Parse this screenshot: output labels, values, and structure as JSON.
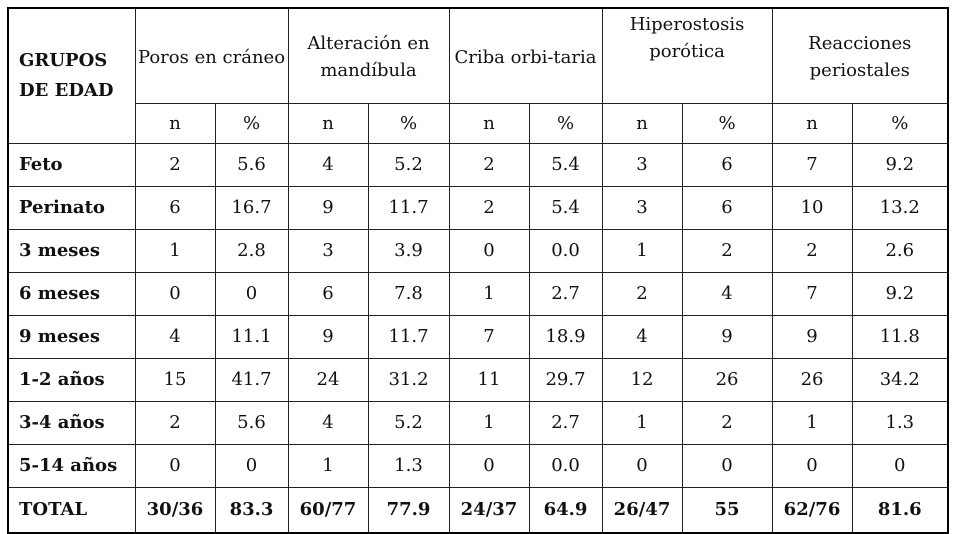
{
  "table": {
    "group_header": "GRUPOS DE EDAD",
    "columns": [
      {
        "label": "Poros en cráneo"
      },
      {
        "label": "Alteración en mandíbula"
      },
      {
        "label": "Criba orbi-taria"
      },
      {
        "label": "Hiperostosis porótica"
      },
      {
        "label": "Reacciones periostales"
      }
    ],
    "sub_n": "n",
    "sub_pct": "%",
    "rows": [
      {
        "label": "Feto",
        "cells": [
          "2",
          "5.6",
          "4",
          "5.2",
          "2",
          "5.4",
          "3",
          "6",
          "7",
          "9.2"
        ]
      },
      {
        "label": "Perinato",
        "cells": [
          "6",
          "16.7",
          "9",
          "11.7",
          "2",
          "5.4",
          "3",
          "6",
          "10",
          "13.2"
        ]
      },
      {
        "label": "3 meses",
        "cells": [
          "1",
          "2.8",
          "3",
          "3.9",
          "0",
          "0.0",
          "1",
          "2",
          "2",
          "2.6"
        ]
      },
      {
        "label": "6 meses",
        "cells": [
          "0",
          "0",
          "6",
          "7.8",
          "1",
          "2.7",
          "2",
          "4",
          "7",
          "9.2"
        ]
      },
      {
        "label": "9 meses",
        "cells": [
          "4",
          "11.1",
          "9",
          "11.7",
          "7",
          "18.9",
          "4",
          "9",
          "9",
          "11.8"
        ]
      },
      {
        "label": "1-2 años",
        "cells": [
          "15",
          "41.7",
          "24",
          "31.2",
          "11",
          "29.7",
          "12",
          "26",
          "26",
          "34.2"
        ]
      },
      {
        "label": "3-4 años",
        "cells": [
          "2",
          "5.6",
          "4",
          "5.2",
          "1",
          "2.7",
          "1",
          "2",
          "1",
          "1.3"
        ]
      },
      {
        "label": "5-14 años",
        "cells": [
          "0",
          "0",
          "1",
          "1.3",
          "0",
          "0.0",
          "0",
          "0",
          "0",
          "0"
        ]
      }
    ],
    "total": {
      "label": "TOTAL",
      "cells": [
        "30/36",
        "83.3",
        "60/77",
        "77.9",
        "24/37",
        "64.9",
        "26/47",
        "55",
        "62/76",
        "81.6"
      ]
    }
  }
}
